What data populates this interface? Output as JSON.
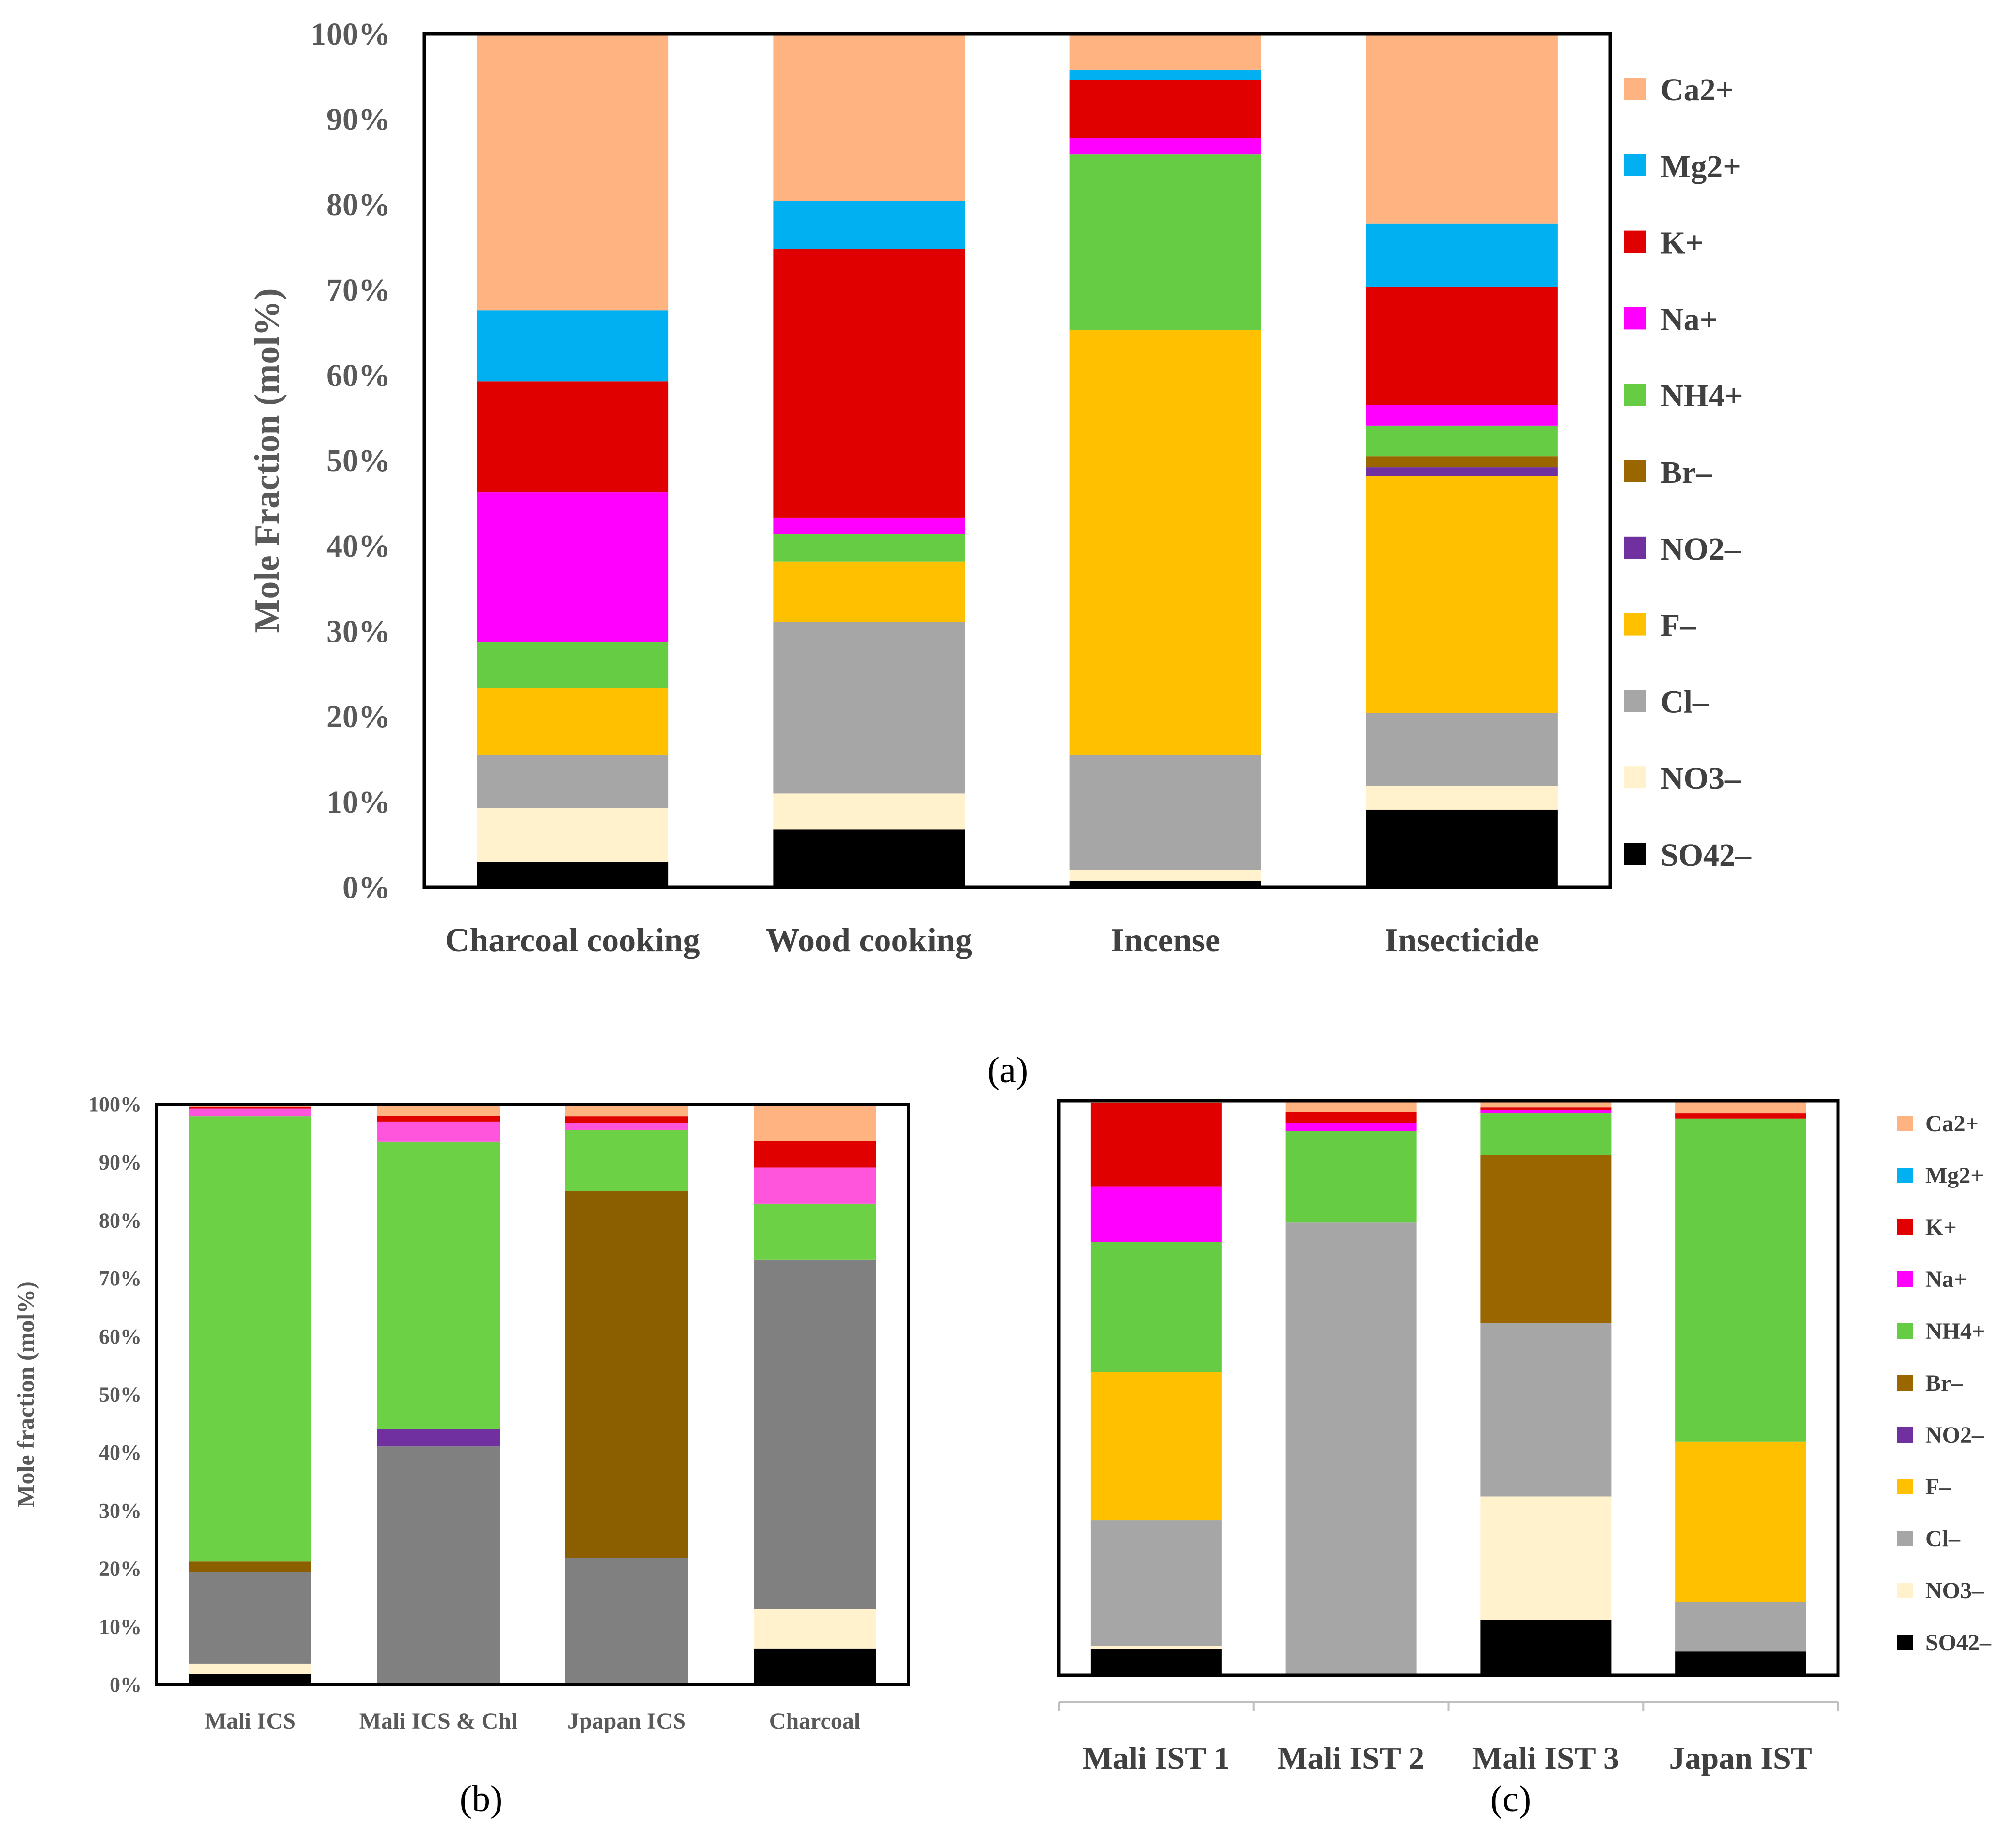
{
  "colors": {
    "Ca2+": "#ffb380",
    "Mg2+": "#00b0f0",
    "K+": "#e00000",
    "Na+": "#ff00ff",
    "NH4+": "#66cc44",
    "Br–": "#996600",
    "NO2–": "#7030a0",
    "F–": "#ffc000",
    "Cl–": "#a6a6a6",
    "NO3–": "#fff2cc",
    "SO42–": "#000000"
  },
  "colors_b": {
    "Ca2+": "#ffb380",
    "Mg2+": "#00b0f0",
    "K+": "#e00000",
    "Na+": "#ff55dd",
    "NH4+": "#6dd145",
    "Br–": "#8b5e00",
    "NO2–": "#7030a0",
    "F–": "#ffc000",
    "Cl–": "#808080",
    "NO3–": "#fff2cc",
    "SO42–": "#000000"
  },
  "chart_data": [
    {
      "panel": "(a)",
      "type": "bar",
      "stacked": true,
      "ylabel": "Mole Fraction (mol%)",
      "ylim": [
        0,
        100
      ],
      "yticks": [
        "0%",
        "10%",
        "20%",
        "30%",
        "40%",
        "50%",
        "60%",
        "70%",
        "80%",
        "90%",
        "100%"
      ],
      "categories": [
        "Charcoal cooking",
        "Wood cooking",
        "Incense",
        "Insecticide"
      ],
      "legend_position": "right",
      "series": [
        {
          "name": "SO42–",
          "values": [
            3,
            6.8,
            0.8,
            9.1
          ]
        },
        {
          "name": "NO3–",
          "values": [
            6.3,
            4.2,
            1.2,
            2.8
          ]
        },
        {
          "name": "Cl–",
          "values": [
            6.2,
            20.1,
            13.5,
            8.5
          ]
        },
        {
          "name": "F–",
          "values": [
            7.9,
            7.1,
            49.8,
            27.8
          ]
        },
        {
          "name": "NO2–",
          "values": [
            0,
            0,
            0,
            1
          ]
        },
        {
          "name": "Br–",
          "values": [
            0,
            0,
            0,
            1.3
          ]
        },
        {
          "name": "NH4+",
          "values": [
            5.4,
            3.2,
            20.6,
            3.6
          ]
        },
        {
          "name": "Na+",
          "values": [
            17.5,
            1.9,
            1.9,
            2.4
          ]
        },
        {
          "name": "K+",
          "values": [
            13,
            31.5,
            6.8,
            13.9
          ]
        },
        {
          "name": "Mg2+",
          "values": [
            8.3,
            5.6,
            1.2,
            7.4
          ]
        },
        {
          "name": "Ca2+",
          "values": [
            32.4,
            19.6,
            4.2,
            22.2
          ]
        }
      ]
    },
    {
      "panel": "(b)",
      "type": "bar",
      "stacked": true,
      "ylabel": "Mole fraction (mol%)",
      "ylim": [
        0,
        100
      ],
      "yticks": [
        "0%",
        "10%",
        "20%",
        "30%",
        "40%",
        "50%",
        "60%",
        "70%",
        "80%",
        "90%",
        "100%"
      ],
      "categories": [
        "Mali ICS",
        "Mali ICS & Chl",
        "Jpapan ICS",
        "Charcoal"
      ],
      "series": [
        {
          "name": "SO42–",
          "values": [
            1.8,
            0,
            0,
            6.2
          ]
        },
        {
          "name": "NO3–",
          "values": [
            1.8,
            0,
            0,
            6.8
          ]
        },
        {
          "name": "Cl–",
          "values": [
            15.8,
            41,
            21.8,
            60.2
          ]
        },
        {
          "name": "F–",
          "values": [
            0,
            0,
            0,
            0
          ]
        },
        {
          "name": "NO2–",
          "values": [
            0,
            3,
            0,
            0
          ]
        },
        {
          "name": "Br–",
          "values": [
            1.8,
            0,
            63.2,
            0
          ]
        },
        {
          "name": "NH4+",
          "values": [
            76.7,
            49.5,
            10.5,
            9.6
          ]
        },
        {
          "name": "Na+",
          "values": [
            1.3,
            3.5,
            1.2,
            6.3
          ]
        },
        {
          "name": "K+",
          "values": [
            0.4,
            1,
            1.2,
            4.5
          ]
        },
        {
          "name": "Mg2+",
          "values": [
            0,
            0,
            0,
            0
          ]
        },
        {
          "name": "Ca2+",
          "values": [
            0.4,
            2,
            2.1,
            6.4
          ]
        }
      ]
    },
    {
      "panel": "(c)",
      "type": "bar",
      "stacked": true,
      "ylim": [
        0,
        100
      ],
      "categories": [
        "Mali IST 1",
        "Mali IST 2",
        "Mali IST 3",
        "Japan IST"
      ],
      "legend_position": "right",
      "series": [
        {
          "name": "SO42–",
          "values": [
            4.6,
            0,
            9.6,
            4.2
          ]
        },
        {
          "name": "NO3–",
          "values": [
            0.5,
            0,
            21.5,
            0
          ]
        },
        {
          "name": "Cl–",
          "values": [
            21.9,
            78.8,
            30.2,
            8.6
          ]
        },
        {
          "name": "F–",
          "values": [
            25.8,
            0,
            0,
            27.9
          ]
        },
        {
          "name": "NO2–",
          "values": [
            0,
            0,
            0,
            0
          ]
        },
        {
          "name": "Br–",
          "values": [
            0,
            0,
            29.2,
            0
          ]
        },
        {
          "name": "NH4+",
          "values": [
            22.6,
            15.9,
            7.3,
            56.2
          ]
        },
        {
          "name": "Na+",
          "values": [
            9.7,
            1.5,
            0.6,
            0
          ]
        },
        {
          "name": "K+",
          "values": [
            14.5,
            1.8,
            0.4,
            0.9
          ]
        },
        {
          "name": "Mg2+",
          "values": [
            0,
            0,
            0,
            0
          ]
        },
        {
          "name": "Ca2+",
          "values": [
            0.4,
            2,
            1.2,
            2.2
          ]
        }
      ]
    }
  ],
  "legend_labels": [
    "Ca2+",
    "Mg2+",
    "K+",
    "Na+",
    "NH4+",
    "Br–",
    "NO2–",
    "F–",
    "Cl–",
    "NO3–",
    "SO42–"
  ],
  "panel_labels": {
    "a": "(a)",
    "b": "(b)",
    "c": "(c)"
  }
}
